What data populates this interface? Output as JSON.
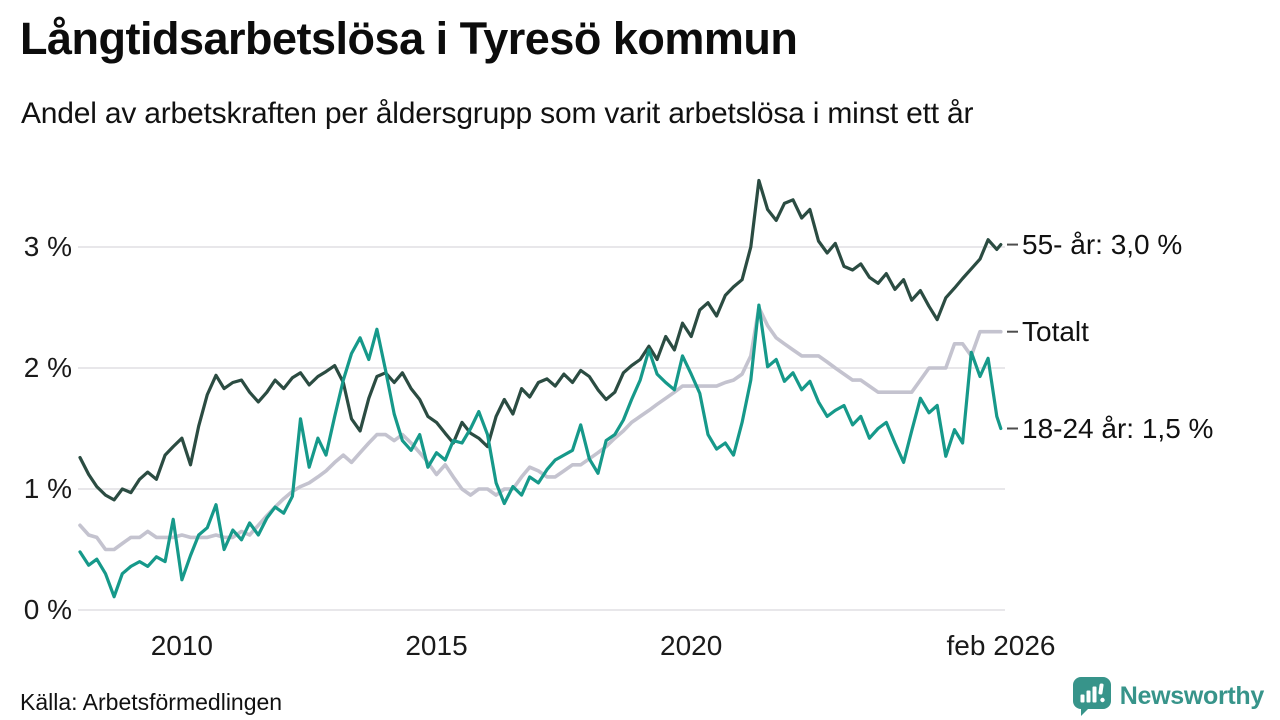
{
  "header": {
    "title": "Långtidsarbetslösa i Tyresö kommun",
    "subtitle": "Andel av arbetskraften per åldersgrupp som varit arbetslösa i minst ett år"
  },
  "footer": {
    "source": "Källa: Arbetsförmedlingen",
    "brand": "Newsworthy"
  },
  "colors": {
    "series_55": "#2b4c42",
    "series_total": "#c4c3cf",
    "series_18_24": "#16998a",
    "gridline": "#e0dfe4",
    "end_dash": "#4d4d4d",
    "brand_teal": "#37948a",
    "text": "#111111"
  },
  "chart_data": {
    "type": "line",
    "title": "Långtidsarbetslösa i Tyresö kommun",
    "subtitle": "Andel av arbetskraften per åldersgrupp som varit arbetslösa i minst ett år",
    "xlabel": "",
    "ylabel": "",
    "unit": "%",
    "grid": true,
    "legend_position": "right-end-labels",
    "x_axis": {
      "range": [
        2008.0,
        2026.083
      ],
      "ticks": [
        "2010",
        "2015",
        "2020",
        "feb 2026"
      ],
      "tick_years": [
        2010,
        2015,
        2020,
        2026.083
      ]
    },
    "y_axis": {
      "range": [
        0,
        3.7
      ],
      "ticks": [
        "3 %",
        "2 %",
        "1 %",
        "0 %"
      ],
      "tick_values": [
        3,
        2,
        1,
        0
      ]
    },
    "x": [
      2008.0,
      2008.17,
      2008.33,
      2008.5,
      2008.67,
      2008.83,
      2009.0,
      2009.17,
      2009.33,
      2009.5,
      2009.67,
      2009.83,
      2010.0,
      2010.17,
      2010.33,
      2010.5,
      2010.67,
      2010.83,
      2011.0,
      2011.17,
      2011.33,
      2011.5,
      2011.67,
      2011.83,
      2012.0,
      2012.17,
      2012.33,
      2012.5,
      2012.67,
      2012.83,
      2013.0,
      2013.17,
      2013.33,
      2013.5,
      2013.67,
      2013.83,
      2014.0,
      2014.17,
      2014.33,
      2014.5,
      2014.67,
      2014.83,
      2015.0,
      2015.17,
      2015.33,
      2015.5,
      2015.67,
      2015.83,
      2016.0,
      2016.17,
      2016.33,
      2016.5,
      2016.67,
      2016.83,
      2017.0,
      2017.17,
      2017.33,
      2017.5,
      2017.67,
      2017.83,
      2018.0,
      2018.17,
      2018.33,
      2018.5,
      2018.67,
      2018.83,
      2019.0,
      2019.17,
      2019.33,
      2019.5,
      2019.67,
      2019.83,
      2020.0,
      2020.17,
      2020.33,
      2020.5,
      2020.67,
      2020.83,
      2021.0,
      2021.17,
      2021.33,
      2021.5,
      2021.67,
      2021.83,
      2022.0,
      2022.17,
      2022.33,
      2022.5,
      2022.67,
      2022.83,
      2023.0,
      2023.17,
      2023.33,
      2023.5,
      2023.67,
      2023.83,
      2024.0,
      2024.17,
      2024.33,
      2024.5,
      2024.67,
      2024.83,
      2025.0,
      2025.17,
      2025.33,
      2025.5,
      2025.67,
      2025.83,
      2026.0,
      2026.08
    ],
    "series": [
      {
        "name": "55- år",
        "end_label": "55- år: 3,0 %",
        "end_value": "3,0 %",
        "color": "#2b4c42",
        "width": 3.2,
        "values": [
          1.26,
          1.12,
          1.02,
          0.95,
          0.91,
          1.0,
          0.97,
          1.08,
          1.14,
          1.08,
          1.28,
          1.35,
          1.42,
          1.2,
          1.52,
          1.78,
          1.94,
          1.83,
          1.88,
          1.9,
          1.8,
          1.72,
          1.8,
          1.9,
          1.83,
          1.92,
          1.96,
          1.86,
          1.93,
          1.97,
          2.02,
          1.88,
          1.58,
          1.48,
          1.75,
          1.93,
          1.96,
          1.88,
          1.96,
          1.83,
          1.74,
          1.6,
          1.55,
          1.46,
          1.38,
          1.55,
          1.46,
          1.42,
          1.35,
          1.6,
          1.74,
          1.62,
          1.83,
          1.76,
          1.88,
          1.91,
          1.85,
          1.95,
          1.88,
          1.98,
          1.93,
          1.82,
          1.74,
          1.8,
          1.96,
          2.02,
          2.07,
          2.18,
          2.07,
          2.26,
          2.15,
          2.37,
          2.26,
          2.48,
          2.54,
          2.43,
          2.6,
          2.67,
          2.73,
          3.0,
          3.55,
          3.31,
          3.22,
          3.36,
          3.39,
          3.24,
          3.31,
          3.05,
          2.95,
          3.03,
          2.84,
          2.81,
          2.86,
          2.75,
          2.7,
          2.78,
          2.65,
          2.73,
          2.56,
          2.64,
          2.51,
          2.4,
          2.58,
          2.66,
          2.74,
          2.82,
          2.9,
          3.06,
          2.98,
          3.02
        ]
      },
      {
        "name": "Totalt",
        "end_label": "Totalt",
        "end_value": "2,3 %",
        "color": "#c4c3cf",
        "width": 3.6,
        "values": [
          0.7,
          0.62,
          0.6,
          0.5,
          0.5,
          0.55,
          0.6,
          0.6,
          0.65,
          0.6,
          0.6,
          0.6,
          0.62,
          0.6,
          0.6,
          0.6,
          0.62,
          0.6,
          0.6,
          0.65,
          0.62,
          0.7,
          0.78,
          0.85,
          0.92,
          0.98,
          1.02,
          1.05,
          1.1,
          1.15,
          1.22,
          1.28,
          1.22,
          1.3,
          1.38,
          1.45,
          1.45,
          1.4,
          1.45,
          1.38,
          1.3,
          1.22,
          1.12,
          1.2,
          1.1,
          1.0,
          0.95,
          1.0,
          1.0,
          0.95,
          1.0,
          1.0,
          1.1,
          1.18,
          1.15,
          1.1,
          1.1,
          1.15,
          1.2,
          1.2,
          1.25,
          1.3,
          1.35,
          1.42,
          1.48,
          1.55,
          1.6,
          1.65,
          1.7,
          1.75,
          1.8,
          1.85,
          1.85,
          1.85,
          1.85,
          1.85,
          1.88,
          1.9,
          1.95,
          2.1,
          2.5,
          2.35,
          2.25,
          2.2,
          2.15,
          2.1,
          2.1,
          2.1,
          2.05,
          2.0,
          1.95,
          1.9,
          1.9,
          1.85,
          1.8,
          1.8,
          1.8,
          1.8,
          1.8,
          1.9,
          2.0,
          2.0,
          2.0,
          2.2,
          2.2,
          2.1,
          2.3,
          2.3,
          2.3,
          2.3
        ]
      },
      {
        "name": "18-24 år",
        "end_label": "18-24 år: 1,5 %",
        "end_value": "1,5 %",
        "color": "#16998a",
        "width": 3.2,
        "values": [
          0.48,
          0.37,
          0.42,
          0.3,
          0.11,
          0.3,
          0.36,
          0.4,
          0.36,
          0.44,
          0.4,
          0.75,
          0.25,
          0.45,
          0.62,
          0.68,
          0.87,
          0.5,
          0.66,
          0.58,
          0.72,
          0.62,
          0.76,
          0.85,
          0.8,
          0.94,
          1.58,
          1.18,
          1.42,
          1.28,
          1.6,
          1.9,
          2.12,
          2.25,
          2.07,
          2.32,
          1.98,
          1.62,
          1.4,
          1.32,
          1.45,
          1.18,
          1.3,
          1.24,
          1.4,
          1.38,
          1.5,
          1.64,
          1.45,
          1.05,
          0.88,
          1.02,
          0.95,
          1.1,
          1.05,
          1.16,
          1.24,
          1.28,
          1.32,
          1.53,
          1.25,
          1.13,
          1.4,
          1.45,
          1.57,
          1.74,
          1.9,
          2.15,
          1.95,
          1.88,
          1.82,
          2.1,
          1.95,
          1.79,
          1.45,
          1.33,
          1.38,
          1.28,
          1.55,
          1.9,
          2.52,
          2.01,
          2.07,
          1.89,
          1.96,
          1.82,
          1.89,
          1.72,
          1.6,
          1.65,
          1.69,
          1.53,
          1.6,
          1.42,
          1.5,
          1.55,
          1.38,
          1.22,
          1.48,
          1.75,
          1.63,
          1.69,
          1.27,
          1.49,
          1.38,
          2.13,
          1.93,
          2.08,
          1.6,
          1.5
        ]
      }
    ]
  }
}
